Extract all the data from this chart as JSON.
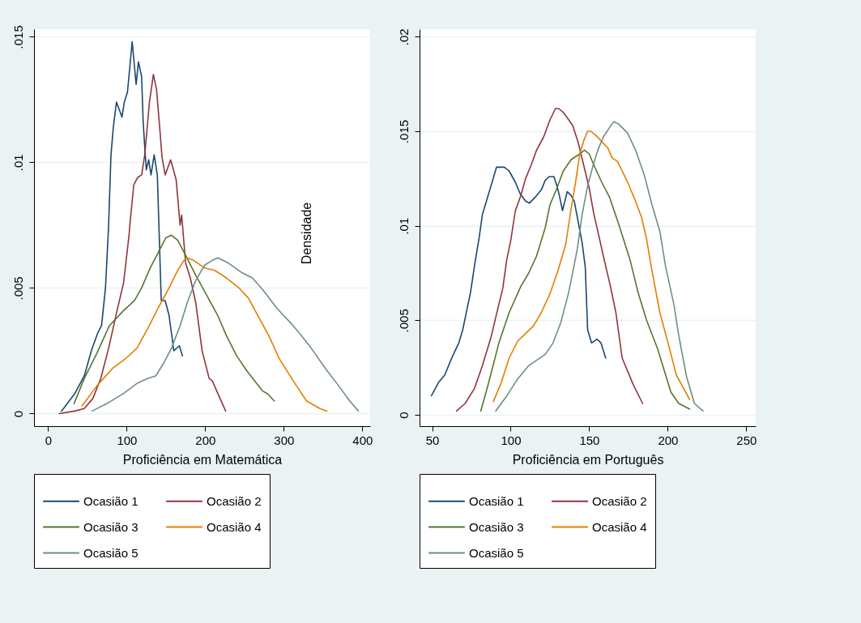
{
  "chart_data": [
    {
      "type": "line",
      "xlabel": "Proficiência em Matemática",
      "annotations": [
        "Densidade"
      ],
      "xlim": [
        -18,
        410
      ],
      "ylim": [
        -0.0005,
        0.0153
      ],
      "xticks": [
        0,
        100,
        200,
        300,
        400
      ],
      "yticks": [
        0,
        {
          "value": 0.005,
          "label": ".005"
        },
        {
          "value": 0.01,
          "label": ".01"
        },
        {
          "value": 0.015,
          "label": ".015"
        }
      ],
      "grid": "y",
      "legend": "bottom",
      "series": [
        {
          "name": "Ocasião 1",
          "color": "#1a476f",
          "x": [
            17,
            34,
            46,
            55,
            63,
            68,
            73,
            77,
            80,
            83,
            87,
            94,
            97,
            101,
            107,
            112,
            115,
            119,
            121,
            123,
            125,
            128,
            131,
            135,
            139,
            141,
            144,
            149,
            154,
            160,
            167,
            171
          ],
          "values": [
            0.0001,
            0.0008,
            0.0015,
            0.0025,
            0.0032,
            0.0035,
            0.005,
            0.0075,
            0.0103,
            0.0114,
            0.0124,
            0.0118,
            0.0124,
            0.0128,
            0.0148,
            0.0131,
            0.014,
            0.0134,
            0.0116,
            0.0106,
            0.0097,
            0.0101,
            0.0095,
            0.0103,
            0.0095,
            0.0075,
            0.0045,
            0.0045,
            0.0039,
            0.0025,
            0.0027,
            0.0023
          ]
        },
        {
          "name": "Ocasião 2",
          "color": "#90353b",
          "x": [
            14,
            34,
            46,
            57,
            67,
            77,
            87,
            96,
            103,
            104,
            109,
            114,
            119,
            123,
            129,
            134,
            138,
            142,
            145,
            149,
            156,
            163,
            168,
            170,
            175,
            181,
            188,
            196,
            205,
            209,
            216,
            226
          ],
          "values": [
            0,
            0.0001,
            0.0002,
            0.0006,
            0.0014,
            0.0026,
            0.004,
            0.0052,
            0.0071,
            0.0075,
            0.0091,
            0.0094,
            0.0095,
            0.0103,
            0.0124,
            0.0135,
            0.0129,
            0.0114,
            0.0102,
            0.0095,
            0.0101,
            0.0093,
            0.0075,
            0.0079,
            0.006,
            0.0054,
            0.0044,
            0.0025,
            0.0014,
            0.0013,
            0.0008,
            0.0001
          ]
        },
        {
          "name": "Ocasião 3",
          "color": "#55752f",
          "x": [
            33,
            46,
            62,
            78,
            96,
            110,
            119,
            130,
            140,
            150,
            157,
            165,
            175,
            188,
            202,
            216,
            227,
            240,
            253,
            263,
            273,
            279,
            288
          ],
          "values": [
            0.0004,
            0.0014,
            0.0024,
            0.0035,
            0.0041,
            0.0045,
            0.005,
            0.0058,
            0.0064,
            0.007,
            0.0071,
            0.0069,
            0.0063,
            0.0055,
            0.0047,
            0.0039,
            0.0031,
            0.0023,
            0.0017,
            0.0013,
            0.0009,
            0.0008,
            0.0005
          ]
        },
        {
          "name": "Ocasião 4",
          "color": "#e37e00",
          "x": [
            43,
            62,
            82,
            99,
            113,
            127,
            140,
            154,
            165,
            173,
            177,
            185,
            199,
            212,
            227,
            243,
            255,
            267,
            281,
            294,
            312,
            329,
            346,
            355
          ],
          "values": [
            0.0003,
            0.0011,
            0.0018,
            0.0022,
            0.0026,
            0.0034,
            0.0042,
            0.005,
            0.0057,
            0.0061,
            0.0062,
            0.0061,
            0.0058,
            0.0057,
            0.0054,
            0.005,
            0.0046,
            0.0039,
            0.0031,
            0.0022,
            0.0013,
            0.0005,
            0.0002,
            0.0001
          ]
        },
        {
          "name": "Ocasião 5",
          "color": "#6e8e84",
          "x": [
            56,
            75,
            96,
            113,
            127,
            137,
            147,
            157,
            168,
            178,
            188,
            199,
            209,
            216,
            229,
            247,
            260,
            274,
            291,
            309,
            320,
            335,
            353,
            370,
            384,
            395
          ],
          "values": [
            0.0001,
            0.0004,
            0.0008,
            0.0012,
            0.0014,
            0.0015,
            0.002,
            0.0026,
            0.0035,
            0.0045,
            0.0053,
            0.0059,
            0.0061,
            0.0062,
            0.006,
            0.0056,
            0.0054,
            0.0049,
            0.0042,
            0.0036,
            0.0032,
            0.0026,
            0.0018,
            0.0011,
            0.0005,
            0.0001
          ]
        }
      ]
    },
    {
      "type": "line",
      "xlabel": "Proficiência em Português",
      "xlim": [
        42,
        256
      ],
      "ylim": [
        -0.0006,
        0.0204
      ],
      "xticks": [
        50,
        100,
        150,
        200,
        250
      ],
      "yticks": [
        0,
        {
          "value": 0.005,
          "label": ".005"
        },
        {
          "value": 0.01,
          "label": ".01"
        },
        {
          "value": 0.015,
          "label": ".015"
        },
        {
          "value": 0.02,
          "label": ".02"
        }
      ],
      "grid": "y",
      "legend": "bottom",
      "series": [
        {
          "name": "Ocasião 1",
          "color": "#1a476f",
          "x": [
            49.5,
            54,
            58,
            63,
            67,
            69.5,
            72,
            74.5,
            77,
            80,
            82,
            86,
            88.5,
            91,
            96,
            99,
            103,
            106,
            109.5,
            112,
            115.5,
            119.5,
            122,
            124.5,
            127.5,
            129.5,
            131,
            133,
            136,
            138.5,
            140.5,
            143,
            145.5,
            147.5,
            148,
            149,
            151.5,
            155,
            157.5,
            160.5
          ],
          "values": [
            0.001,
            0.0017,
            0.0021,
            0.0031,
            0.0038,
            0.0045,
            0.0055,
            0.0065,
            0.0079,
            0.0094,
            0.0106,
            0.0117,
            0.0124,
            0.0131,
            0.0131,
            0.0129,
            0.0123,
            0.0117,
            0.0113,
            0.0112,
            0.0115,
            0.0119,
            0.0124,
            0.0126,
            0.0126,
            0.0121,
            0.0116,
            0.0108,
            0.0118,
            0.0116,
            0.0113,
            0.0102,
            0.0091,
            0.0078,
            0.0067,
            0.0045,
            0.0038,
            0.004,
            0.0038,
            0.003
          ]
        },
        {
          "name": "Ocasião 2",
          "color": "#90353b",
          "x": [
            65.5,
            71,
            77,
            82,
            87.5,
            91.5,
            95,
            97.5,
            100,
            103,
            106.5,
            109.5,
            113,
            116.5,
            121,
            125,
            128.5,
            130.5,
            133.5,
            137,
            139.5,
            143,
            146.5,
            150,
            153,
            155.5,
            159,
            163.5,
            167,
            171,
            178,
            184
          ],
          "values": [
            0.0002,
            0.0006,
            0.0014,
            0.0026,
            0.0041,
            0.0055,
            0.0067,
            0.0082,
            0.0092,
            0.0108,
            0.0116,
            0.0125,
            0.0132,
            0.014,
            0.0147,
            0.0156,
            0.0162,
            0.0162,
            0.016,
            0.0156,
            0.0153,
            0.0144,
            0.0132,
            0.012,
            0.0106,
            0.0097,
            0.0084,
            0.0068,
            0.0054,
            0.003,
            0.0016,
            0.0006
          ]
        },
        {
          "name": "Ocasião 3",
          "color": "#55752f",
          "x": [
            81,
            86,
            92.5,
            99,
            106.5,
            111.5,
            116.5,
            122,
            125,
            129.5,
            133.5,
            138.5,
            144,
            147,
            150,
            153,
            158,
            163,
            169.5,
            176,
            181,
            186.5,
            193.5,
            202,
            207,
            214
          ],
          "values": [
            0.0002,
            0.0017,
            0.0038,
            0.0054,
            0.0068,
            0.0075,
            0.0084,
            0.0099,
            0.0111,
            0.012,
            0.0129,
            0.0135,
            0.0138,
            0.014,
            0.0138,
            0.0132,
            0.0123,
            0.0115,
            0.0099,
            0.0082,
            0.0065,
            0.005,
            0.0035,
            0.0012,
            0.0006,
            0.0003
          ]
        },
        {
          "name": "Ocasião 4",
          "color": "#e37e00",
          "x": [
            89,
            94,
            99,
            104.5,
            109.5,
            114.5,
            119.5,
            125,
            130,
            135,
            138.5,
            141.5,
            144,
            146.5,
            149,
            151,
            154,
            157.5,
            162,
            164.5,
            168,
            174.5,
            179.5,
            183.5,
            186.5,
            190,
            195,
            200.5,
            205.5,
            214
          ],
          "values": [
            0.0007,
            0.0017,
            0.003,
            0.0039,
            0.0043,
            0.0047,
            0.0054,
            0.0064,
            0.0076,
            0.009,
            0.0109,
            0.0124,
            0.0138,
            0.0145,
            0.015,
            0.015,
            0.0148,
            0.0145,
            0.0141,
            0.0136,
            0.0134,
            0.0123,
            0.0113,
            0.0104,
            0.0093,
            0.0076,
            0.0054,
            0.0037,
            0.0021,
            0.0008
          ]
        },
        {
          "name": "Ocasião 5",
          "color": "#6e8e84",
          "x": [
            90.5,
            97.5,
            104.5,
            111.5,
            122,
            127,
            132,
            137,
            142.5,
            145.5,
            149,
            152.5,
            155.5,
            159,
            163,
            165.5,
            168.5,
            174.5,
            179.5,
            185,
            190,
            195,
            198.5,
            204,
            207,
            212,
            217,
            222.5
          ],
          "values": [
            0.0002,
            0.001,
            0.0019,
            0.0026,
            0.0032,
            0.0038,
            0.0049,
            0.0065,
            0.0088,
            0.0106,
            0.0121,
            0.0132,
            0.014,
            0.0147,
            0.0152,
            0.0155,
            0.0154,
            0.0149,
            0.014,
            0.0127,
            0.0111,
            0.0097,
            0.0079,
            0.0058,
            0.0042,
            0.002,
            0.0006,
            0.0002
          ]
        }
      ]
    }
  ]
}
